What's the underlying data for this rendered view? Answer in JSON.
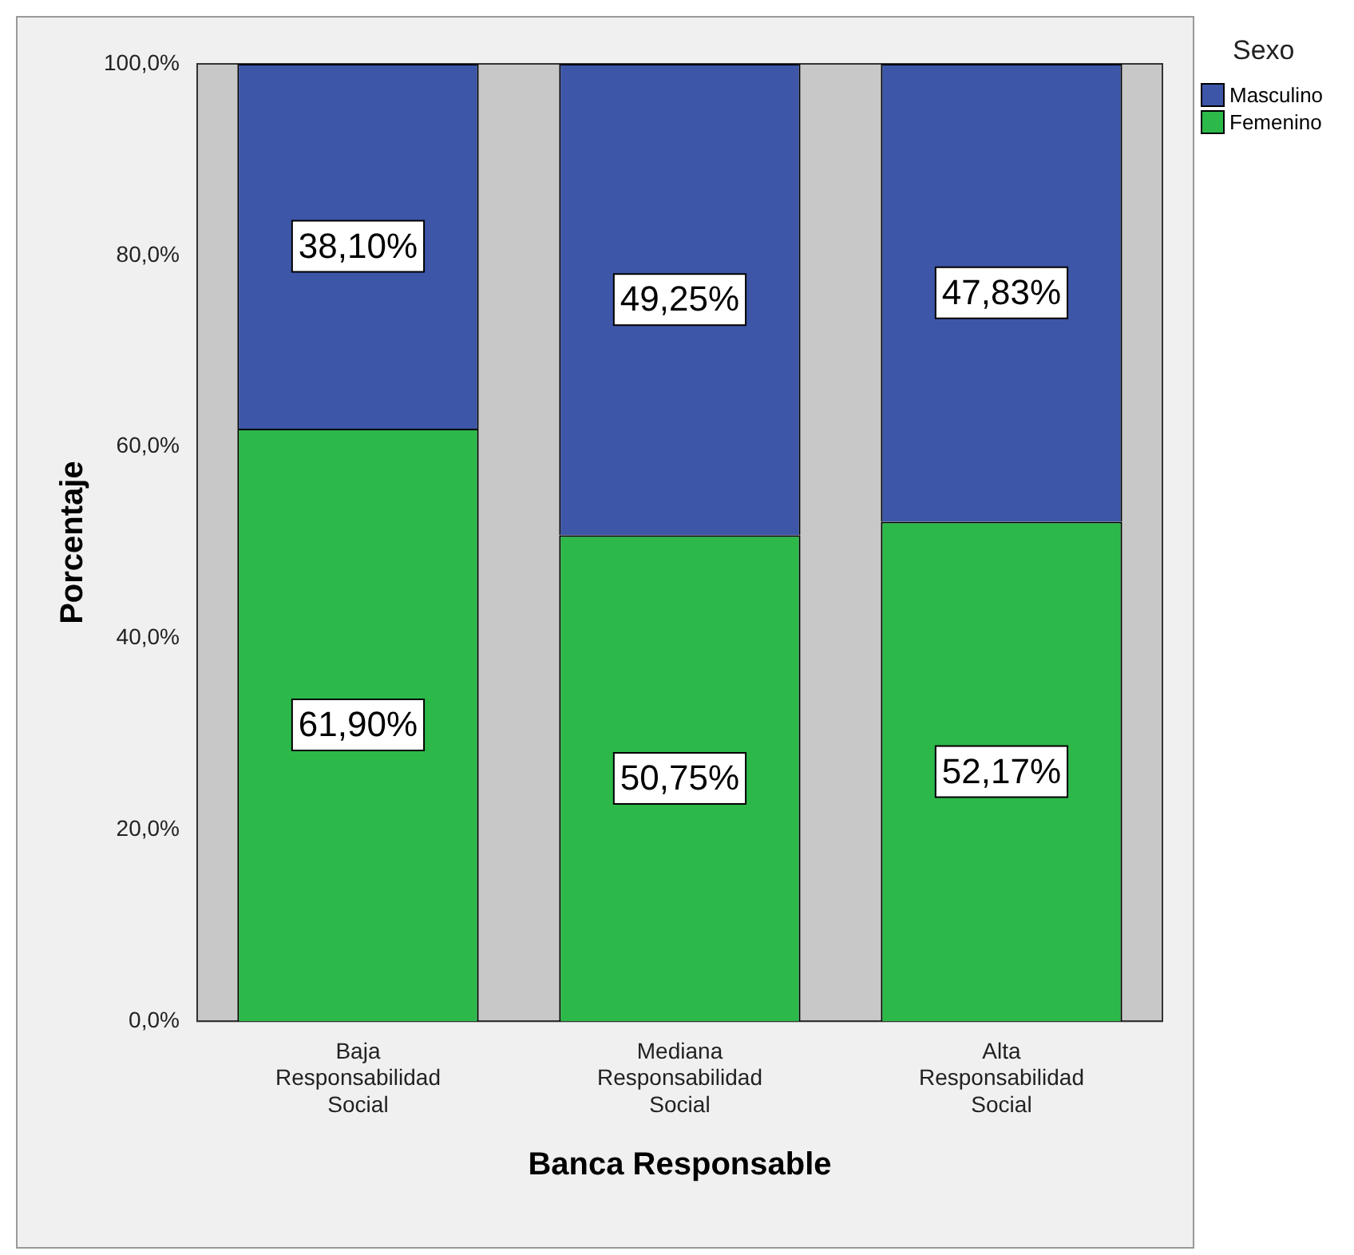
{
  "chart_data": {
    "type": "bar",
    "stacked": true,
    "xlabel": "Banca Responsable",
    "ylabel": "Porcentaje",
    "legend_title": "Sexo",
    "legend": "top right",
    "grid": false,
    "categories": [
      "Baja Responsabilidad Social",
      "Mediana Responsabilidad Social",
      "Alta Responsabilidad Social"
    ],
    "ylim": [
      0,
      100
    ],
    "yticks": [
      {
        "value": 0,
        "label": "0,0%"
      },
      {
        "value": 20,
        "label": "20,0%"
      },
      {
        "value": 40,
        "label": "40,0%"
      },
      {
        "value": 60,
        "label": "60,0%"
      },
      {
        "value": 80,
        "label": "80,0%"
      },
      {
        "value": 100,
        "label": "100,0%"
      }
    ],
    "series": [
      {
        "name": "Femenino",
        "color": "#2db84a",
        "values": [
          61.9,
          50.75,
          52.17
        ],
        "value_labels": [
          "61,90%",
          "50,75%",
          "52,17%"
        ]
      },
      {
        "name": "Masculino",
        "color": "#3d56a8",
        "values": [
          38.1,
          49.25,
          47.83
        ],
        "value_labels": [
          "38,10%",
          "49,25%",
          "47,83%"
        ]
      }
    ]
  }
}
